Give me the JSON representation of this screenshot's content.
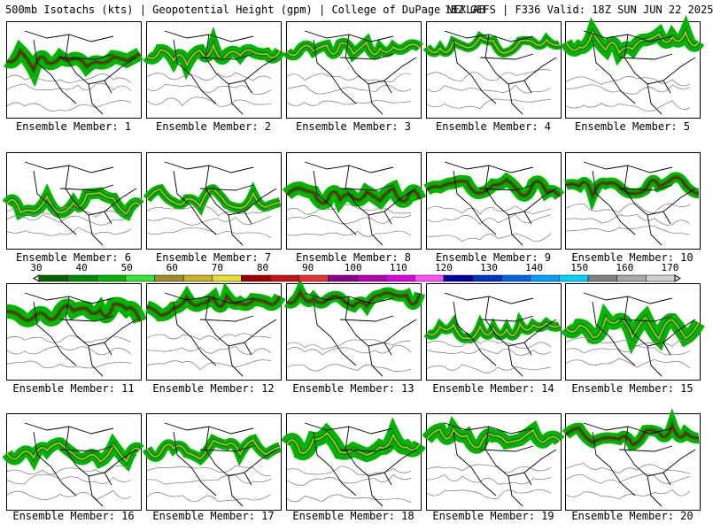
{
  "header": {
    "title_left": "500mb Isotachs (kts) | Geopotential Height (gpm) | College of DuPage NEXLAB",
    "title_right": "18Z GEFS | F336 Valid: 18Z SUN JUN 22 2025"
  },
  "colorbar": {
    "tick_labels": [
      "30",
      "40",
      "50",
      "60",
      "70",
      "80",
      "90",
      "100",
      "110",
      "120",
      "130",
      "140",
      "150",
      "160",
      "170"
    ],
    "colors": [
      "#006400",
      "#008c00",
      "#00b400",
      "#32e632",
      "#a08c28",
      "#c8b428",
      "#e6dc32",
      "#a00000",
      "#c81414",
      "#e63232",
      "#8c008c",
      "#b400b4",
      "#dc00dc",
      "#ff50ff",
      "#0000a0",
      "#0032c8",
      "#0064e6",
      "#00a0ff",
      "#00d2ff",
      "#808080",
      "#a8a8a8",
      "#d0d0d0"
    ]
  },
  "panels": [
    {
      "label": "Ensemble Member: 1"
    },
    {
      "label": "Ensemble Member: 2"
    },
    {
      "label": "Ensemble Member: 3"
    },
    {
      "label": "Ensemble Member: 4"
    },
    {
      "label": "Ensemble Member: 5"
    },
    {
      "label": "Ensemble Member: 6"
    },
    {
      "label": "Ensemble Member: 7"
    },
    {
      "label": "Ensemble Member: 8"
    },
    {
      "label": "Ensemble Member: 9"
    },
    {
      "label": "Ensemble Member: 10"
    },
    {
      "label": "Ensemble Member: 11"
    },
    {
      "label": "Ensemble Member: 12"
    },
    {
      "label": "Ensemble Member: 13"
    },
    {
      "label": "Ensemble Member: 14"
    },
    {
      "label": "Ensemble Member: 15"
    },
    {
      "label": "Ensemble Member: 16"
    },
    {
      "label": "Ensemble Member: 17"
    },
    {
      "label": "Ensemble Member: 18"
    },
    {
      "label": "Ensemble Member: 19"
    },
    {
      "label": "Ensemble Member: 20"
    }
  ]
}
